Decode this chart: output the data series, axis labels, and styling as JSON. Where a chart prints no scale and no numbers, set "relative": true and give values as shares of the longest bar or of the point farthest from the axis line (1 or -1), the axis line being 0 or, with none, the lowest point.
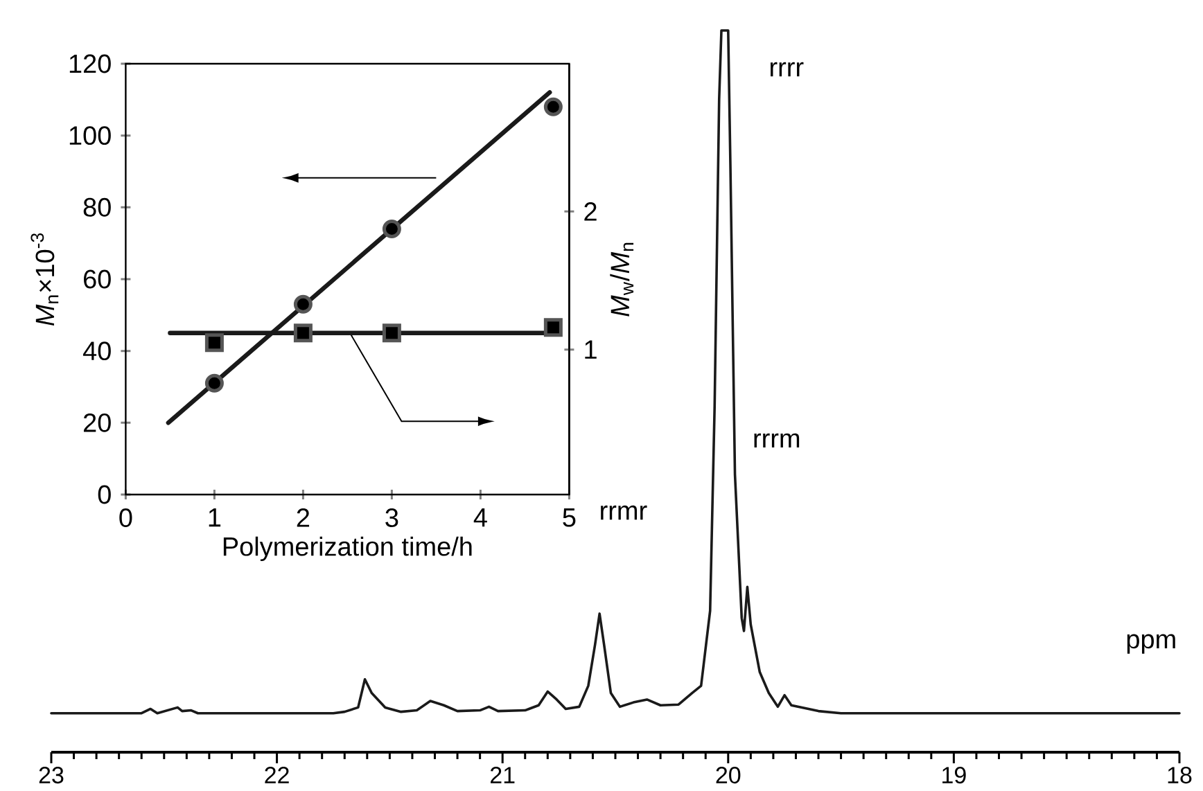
{
  "chart_data": [
    {
      "type": "scatter",
      "xlabel": "Polymerization time/h",
      "ylabel": "*M*$_{n}$×10$^{-3}$",
      "y2label": "*M*$_{w}$/*M*$_{n}$",
      "xlim": [
        0,
        5
      ],
      "xticks": [
        0,
        1,
        2,
        3,
        4,
        5
      ],
      "ylim": [
        0,
        120
      ],
      "yticks": [
        0,
        20,
        40,
        60,
        80,
        100,
        120
      ],
      "y2lim": [
        -0.05,
        3.07
      ],
      "y2ticks": [
        1,
        2
      ],
      "series": [
        {
          "type": "scatter",
          "marker": "circle",
          "color": "#555555",
          "x": [
            1,
            2,
            3,
            4.82
          ],
          "values": [
            31,
            53,
            74,
            108
          ]
        },
        {
          "type": "line",
          "color": "#1a1a1a",
          "x": [
            0.48,
            4.78
          ],
          "values": [
            20,
            112
          ]
        },
        {
          "type": "scatter",
          "marker": "square",
          "axis": "y2",
          "color": "#555555",
          "x": [
            1,
            2,
            3,
            4.82
          ],
          "values": [
            1.05,
            1.12,
            1.12,
            1.16
          ]
        },
        {
          "type": "line",
          "axis": "y2",
          "color": "#1a1a1a",
          "x": [
            0.5,
            4.82
          ],
          "values": [
            1.12,
            1.12
          ]
        }
      ]
    },
    {
      "type": "line",
      "relative": true,
      "xlabel": "ppm",
      "xlim": [
        23,
        18
      ],
      "xticks": [
        23,
        22,
        21,
        20,
        19,
        18
      ],
      "annotations": [
        {
          "text": "rrrr",
          "x": 20.0,
          "y": 1.0
        },
        "rrmr",
        "rrrm"
      ],
      "series": [
        {
          "color": "#1a1a1a",
          "x": [
            23.0,
            22.6,
            22.56,
            22.53,
            22.44,
            22.42,
            22.38,
            22.35,
            21.75,
            21.7,
            21.64,
            21.61,
            21.58,
            21.52,
            21.45,
            21.38,
            21.32,
            21.26,
            21.2,
            21.1,
            21.06,
            21.02,
            20.9,
            20.84,
            20.8,
            20.76,
            20.72,
            20.66,
            20.62,
            20.59,
            20.57,
            20.55,
            20.52,
            20.48,
            20.42,
            20.36,
            20.3,
            20.22,
            20.16,
            20.12,
            20.08,
            20.06,
            20.04,
            20.03,
            20.0,
            19.99,
            19.97,
            19.94,
            19.93,
            19.915,
            19.9,
            19.86,
            19.82,
            19.78,
            19.75,
            19.72,
            19.6,
            19.5,
            18.0
          ],
          "values": [
            0.054,
            0.054,
            0.06,
            0.054,
            0.062,
            0.057,
            0.058,
            0.054,
            0.054,
            0.056,
            0.062,
            0.101,
            0.082,
            0.062,
            0.056,
            0.058,
            0.071,
            0.065,
            0.057,
            0.058,
            0.063,
            0.057,
            0.058,
            0.065,
            0.084,
            0.073,
            0.06,
            0.063,
            0.092,
            0.149,
            0.192,
            0.149,
            0.082,
            0.063,
            0.069,
            0.073,
            0.065,
            0.066,
            0.082,
            0.092,
            0.196,
            0.48,
            0.905,
            1.0,
            1.0,
            0.811,
            0.385,
            0.186,
            0.168,
            0.229,
            0.177,
            0.111,
            0.082,
            0.063,
            0.079,
            0.065,
            0.057,
            0.054,
            0.054
          ]
        }
      ]
    }
  ]
}
